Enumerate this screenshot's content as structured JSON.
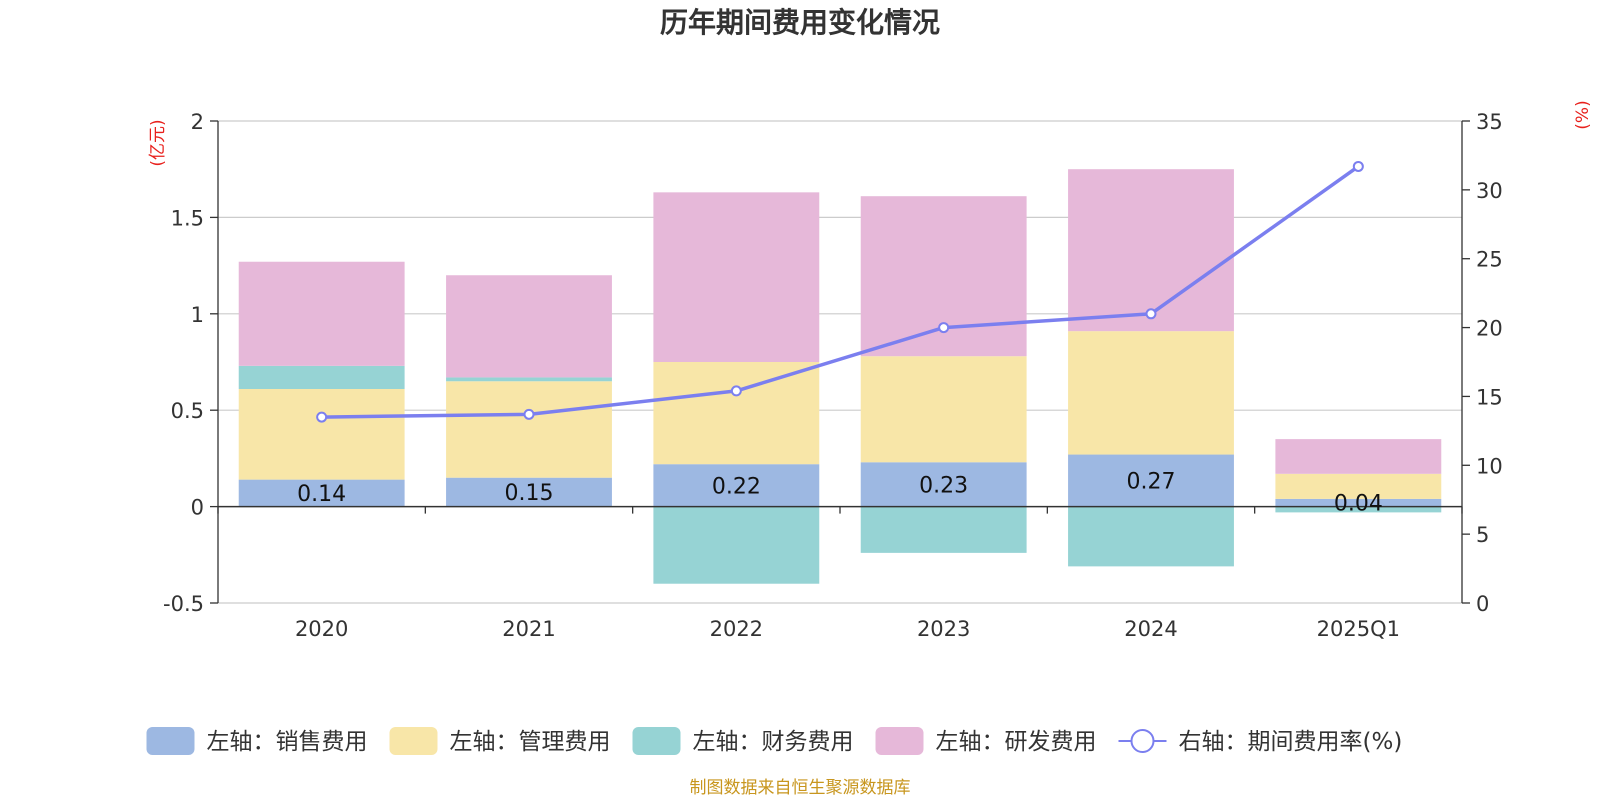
{
  "chart_data": {
    "type": "bar",
    "title": "历年期间费用变化情况",
    "categories": [
      "2020",
      "2021",
      "2022",
      "2023",
      "2024",
      "2025Q1"
    ],
    "left_axis": {
      "unit": "(亿元)",
      "ylim": [
        -0.5,
        2
      ],
      "ticks": [
        "-0.5",
        "0",
        "0.5",
        "1",
        "1.5",
        "2"
      ]
    },
    "right_axis": {
      "unit": "(%)",
      "ylim": [
        0,
        35
      ],
      "ticks": [
        "0",
        "5",
        "10",
        "15",
        "20",
        "25",
        "30",
        "35"
      ]
    },
    "series": [
      {
        "name": "左轴：销售费用",
        "color": "#9db8e2",
        "values": [
          0.14,
          0.15,
          0.22,
          0.23,
          0.27,
          0.04
        ],
        "value_labels": [
          "0.14",
          "0.15",
          "0.22",
          "0.23",
          "0.27",
          "0.04"
        ]
      },
      {
        "name": "左轴：管理费用",
        "color": "#f8e6a8",
        "values": [
          0.47,
          0.5,
          0.53,
          0.55,
          0.64,
          0.13
        ]
      },
      {
        "name": "左轴：财务费用",
        "color": "#96d3d4",
        "values": [
          0.12,
          0.02,
          -0.4,
          -0.24,
          -0.31,
          -0.03
        ]
      },
      {
        "name": "左轴：研发费用",
        "color": "#e6b8d9",
        "values": [
          0.54,
          0.53,
          0.88,
          0.83,
          0.84,
          0.18
        ]
      }
    ],
    "line": {
      "name": "右轴：期间费用率(%)",
      "color": "#7b7fef",
      "values": [
        13.5,
        13.7,
        15.4,
        20.0,
        21.0,
        31.7
      ]
    },
    "grid": true,
    "legend_position": "bottom"
  },
  "footer": {
    "source": "制图数据来自恒生聚源数据库"
  }
}
